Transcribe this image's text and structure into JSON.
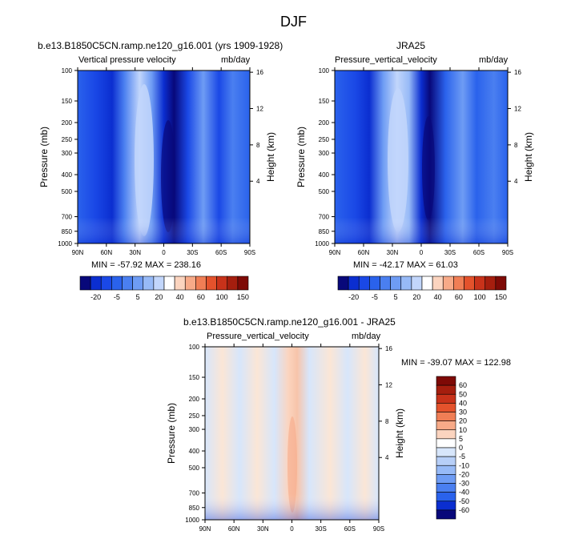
{
  "title": "DJF",
  "colors": {
    "scale_full": [
      "#08087a",
      "#0b2ed0",
      "#1a48e6",
      "#2a62ec",
      "#4a7ff0",
      "#6e9cf4",
      "#97baf7",
      "#c2d6fb",
      "#ffffff",
      "#fbd4bf",
      "#f7aa88",
      "#f07e55",
      "#e4522c",
      "#c8321a",
      "#a51e0e",
      "#7e0a06"
    ],
    "scale_diff": [
      "#7e0a06",
      "#a51e0e",
      "#c8321a",
      "#e4522c",
      "#f07e55",
      "#f7aa88",
      "#fbd4bf",
      "#ffffff",
      "#d7e6fb",
      "#b7cff8",
      "#97baf7",
      "#6e9cf4",
      "#4a7ff0",
      "#2a62ec",
      "#0b2ed0",
      "#08087a"
    ]
  },
  "panels": [
    {
      "title": "b.e13.B1850C5CN.ramp.ne120_g16.001 (yrs 1909-1928)",
      "left_label": "Vertical pressure velocity",
      "right_label": "mb/day",
      "stats": "MIN = -57.92  MAX = 238.16"
    },
    {
      "title": "JRA25",
      "left_label": "Pressure_vertical_velocity",
      "right_label": "mb/day",
      "stats": "MIN = -42.17  MAX = 61.03"
    },
    {
      "title": "b.e13.B1850C5CN.ramp.ne120_g16.001 - JRA25",
      "left_label": "Pressure_vertical_velocity",
      "right_label": "mb/day",
      "stats": "MIN = -39.07  MAX = 122.98"
    }
  ],
  "axes": {
    "ylabel": "Pressure (mb)",
    "ylabel_right": "Height (km)",
    "x_ticks": [
      "90N",
      "60N",
      "30N",
      "0",
      "30S",
      "60S",
      "90S"
    ],
    "y_ticks": [
      "100",
      "150",
      "200",
      "250",
      "300",
      "400",
      "500",
      "700",
      "850",
      "1000"
    ],
    "h_ticks": [
      "16",
      "12",
      "8",
      "4"
    ]
  },
  "colorbar_full": {
    "labels": [
      "-20",
      "-5",
      "5",
      "20",
      "40",
      "60",
      "100",
      "150"
    ]
  },
  "colorbar_diff": {
    "labels": [
      "60",
      "50",
      "40",
      "30",
      "20",
      "10",
      "5",
      "0",
      "-5",
      "-10",
      "-20",
      "-30",
      "-40",
      "-50",
      "-60"
    ]
  },
  "chart_data": [
    {
      "type": "heatmap",
      "title": "b.e13.B1850C5CN.ramp.ne120_g16.001 (yrs 1909-1928)",
      "xlabel": "",
      "ylabel": "Pressure (mb)",
      "y2label": "Height (km)",
      "x_ticks": [
        "90N",
        "60N",
        "30N",
        "0",
        "30S",
        "60S",
        "90S"
      ],
      "y_ticks": [
        100,
        150,
        200,
        250,
        300,
        400,
        500,
        700,
        850,
        1000
      ],
      "x_range": [
        90,
        -90
      ],
      "y_range": [
        100,
        1000
      ],
      "y_scale": "log",
      "units": "mb/day",
      "min": -57.92,
      "max": 238.16,
      "colorbar_levels": [
        -20,
        -5,
        5,
        20,
        40,
        60,
        100,
        150
      ]
    },
    {
      "type": "heatmap",
      "title": "JRA25",
      "ylabel": "Pressure (mb)",
      "y2label": "Height (km)",
      "x_ticks": [
        "90N",
        "60N",
        "30N",
        "0",
        "30S",
        "60S",
        "90S"
      ],
      "y_ticks": [
        100,
        150,
        200,
        250,
        300,
        400,
        500,
        700,
        850,
        1000
      ],
      "x_range": [
        90,
        -90
      ],
      "y_range": [
        100,
        1000
      ],
      "y_scale": "log",
      "units": "mb/day",
      "min": -42.17,
      "max": 61.03,
      "colorbar_levels": [
        -20,
        -5,
        5,
        20,
        40,
        60,
        100,
        150
      ]
    },
    {
      "type": "heatmap",
      "title": "b.e13.B1850C5CN.ramp.ne120_g16.001 - JRA25",
      "ylabel": "Pressure (mb)",
      "y2label": "Height (km)",
      "x_ticks": [
        "90N",
        "60N",
        "30N",
        "0",
        "30S",
        "60S",
        "90S"
      ],
      "y_ticks": [
        100,
        150,
        200,
        250,
        300,
        400,
        500,
        700,
        850,
        1000
      ],
      "x_range": [
        90,
        -90
      ],
      "y_range": [
        100,
        1000
      ],
      "y_scale": "log",
      "units": "mb/day",
      "min": -39.07,
      "max": 122.98,
      "colorbar_levels": [
        60,
        50,
        40,
        30,
        20,
        10,
        5,
        0,
        -5,
        -10,
        -20,
        -30,
        -40,
        -50,
        -60
      ]
    }
  ]
}
